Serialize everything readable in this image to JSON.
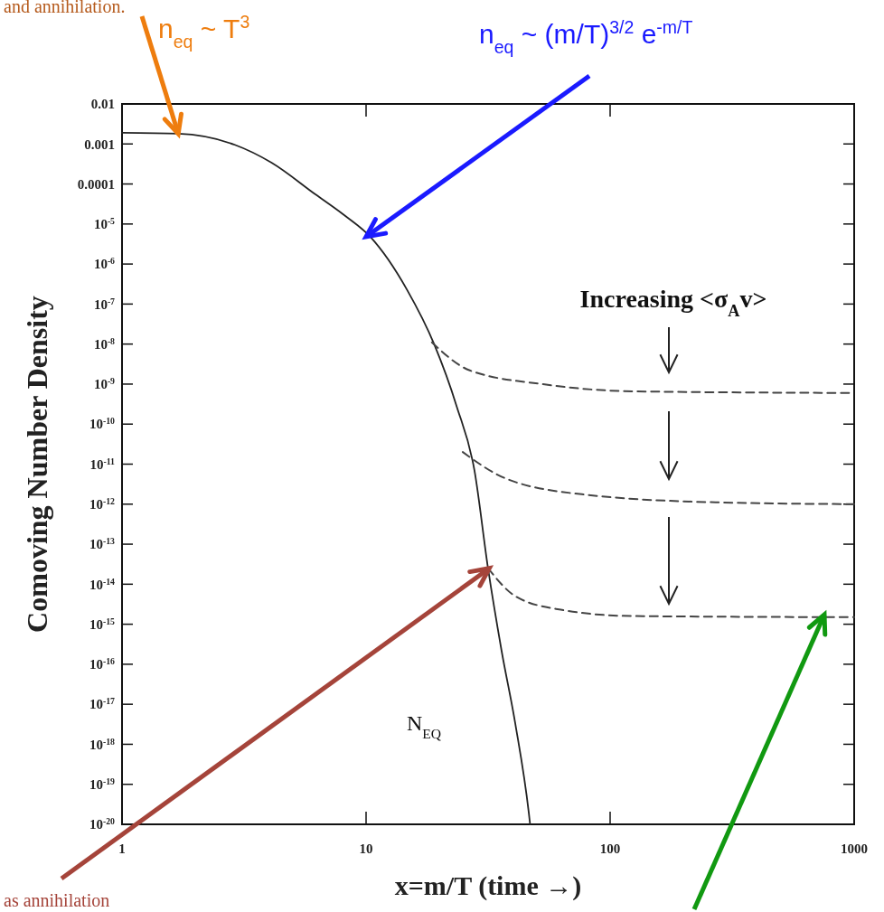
{
  "chart_data": {
    "type": "line",
    "xlabel": "x=m/T (time →)",
    "ylabel": "Comoving Number Density",
    "log": "xy",
    "xlim": [
      1,
      1000
    ],
    "ylim": [
      1e-20,
      0.01
    ],
    "xticks": [
      1,
      10,
      100,
      1000
    ],
    "yticks": [
      0.01,
      0.001,
      0.0001,
      {
        "value": 1e-05,
        "label": "10$^{-5}$"
      },
      {
        "value": 1e-06,
        "label": "10$^{-6}$"
      },
      {
        "value": 1e-07,
        "label": "10$^{-7}$"
      },
      {
        "value": 1e-08,
        "label": "10$^{-8}$"
      },
      {
        "value": 1e-09,
        "label": "10$^{-9}$"
      },
      {
        "value": 1e-10,
        "label": "10$^{-10}$"
      },
      {
        "value": 1e-11,
        "label": "10$^{-11}$"
      },
      {
        "value": 1e-12,
        "label": "10$^{-12}$"
      },
      {
        "value": 1e-13,
        "label": "10$^{-13}$"
      },
      {
        "value": 1e-14,
        "label": "10$^{-14}$"
      },
      {
        "value": 1e-15,
        "label": "10$^{-15}$"
      },
      {
        "value": 1e-16,
        "label": "10$^{-16}$"
      },
      {
        "value": 1e-17,
        "label": "10$^{-17}$"
      },
      {
        "value": 1e-18,
        "label": "10$^{-18}$"
      },
      {
        "value": 1e-19,
        "label": "10$^{-19}$"
      },
      {
        "value": 1e-20,
        "label": "10$^{-20}$"
      }
    ],
    "grid": false,
    "marker": "none",
    "series": [
      {
        "color": "#222222",
        "line_style": "solid",
        "x": [
          1,
          1.7,
          2.9,
          4.1,
          6.2,
          8,
          10.4,
          14.7,
          19,
          23.5,
          27.8,
          31.6,
          35.9,
          40.9,
          46.4,
          47
        ],
        "values": [
          0.0019,
          0.0018,
          0.00095,
          0.00034,
          5.5e-05,
          1.8e-05,
          4.8e-06,
          2.3e-07,
          1e-08,
          2.8e-10,
          7e-12,
          2.5e-14,
          2.2e-16,
          3.2e-18,
          2e-20,
          1e-20
        ]
      },
      {
        "color": "#444444",
        "line_style": "dashed",
        "x": [
          18.6,
          26.6,
          52.7,
          123,
          1000
        ],
        "values": [
          1.1e-08,
          2.2e-09,
          1e-09,
          6.6e-10,
          6e-10
        ]
      },
      {
        "color": "#444444",
        "line_style": "dashed",
        "x": [
          24.9,
          37.6,
          81,
          290,
          1000
        ],
        "values": [
          2e-11,
          4.3e-12,
          1.7e-12,
          1.1e-12,
          1e-12
        ]
      },
      {
        "color": "#444444",
        "line_style": "dashed",
        "x": [
          31.6,
          40.9,
          62.8,
          123,
          1000
        ],
        "values": [
          2.5e-14,
          5e-15,
          2.3e-15,
          1.6e-15,
          1.5e-15
        ]
      }
    ],
    "annotations": [
      {
        "text": "n$_{eq}$ ~ T$^{3}$",
        "x": 1.7,
        "y": 0.0018
      },
      {
        "text": "n$_{eq}$ ~ (m/T)$^{3/2}$ e$^{-m/T}$",
        "x": 10,
        "y": 4.8e-06
      },
      {
        "text": "as annihilation",
        "x": 32,
        "y": 2.5e-14
      },
      "Increasing <σ$_{A}$v>",
      "N$_{EQ}$",
      "and annihilation."
    ]
  }
}
